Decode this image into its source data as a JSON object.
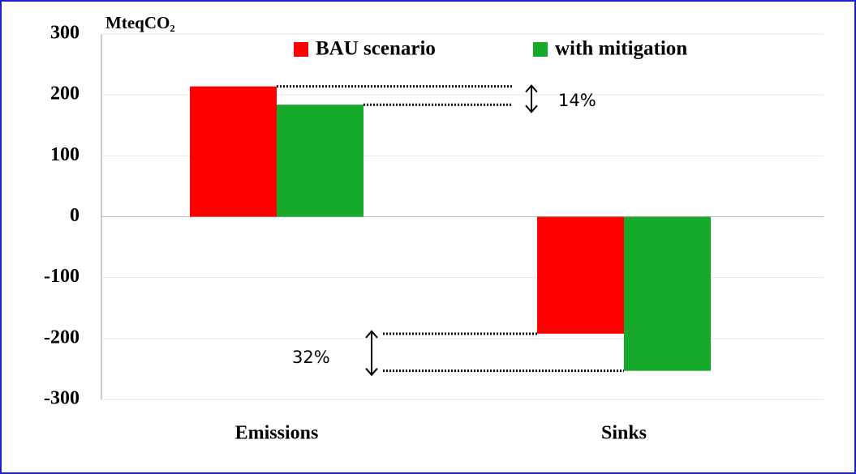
{
  "chart_data": {
    "type": "bar",
    "y_label": "MteqCO₂",
    "categories": [
      "Emissions",
      "Sinks"
    ],
    "series": [
      {
        "name": "BAU scenario",
        "color": "#ff0000",
        "values": [
          214,
          -192
        ]
      },
      {
        "name": "with mitigation",
        "color": "#16a92a",
        "values": [
          184,
          -253
        ]
      }
    ],
    "ylim": [
      -300,
      300
    ],
    "yticks": [
      -300,
      -200,
      -100,
      0,
      100,
      200,
      300
    ],
    "annotations": [
      "14%",
      "32%"
    ],
    "grid": true,
    "legend": "top"
  }
}
